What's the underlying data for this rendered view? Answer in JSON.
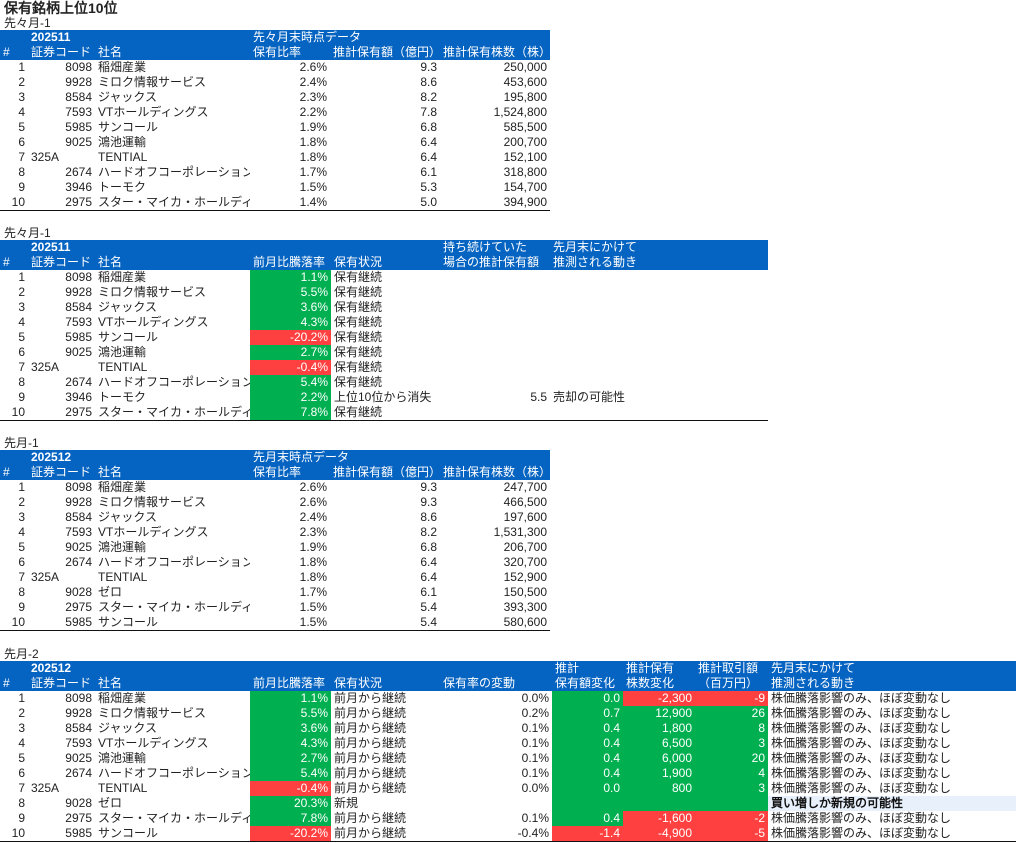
{
  "page_title": "保有銘柄上位10位",
  "colors": {
    "header": "#0563C1",
    "positive": "#00B050",
    "negative": "#FF4040",
    "highlight": "#E7F0FB"
  },
  "tables": [
    {
      "label": "先々月-1",
      "header_top": [
        "",
        "202511",
        "",
        "先々月末時点データ",
        "",
        ""
      ],
      "header_bottom": [
        "#",
        "証券コード",
        "社名",
        "保有比率",
        "推計保有額（億円）",
        "推計保有株数（株）"
      ],
      "rows": [
        {
          "cells": [
            "1",
            "8098",
            "稲畑産業",
            "2.6%",
            "9.3",
            "250,000"
          ]
        },
        {
          "cells": [
            "2",
            "9928",
            "ミロク情報サービス",
            "2.4%",
            "8.6",
            "453,600"
          ]
        },
        {
          "cells": [
            "3",
            "8584",
            "ジャックス",
            "2.3%",
            "8.2",
            "195,800"
          ]
        },
        {
          "cells": [
            "4",
            "7593",
            "VTホールディングス",
            "2.2%",
            "7.8",
            "1,524,800"
          ]
        },
        {
          "cells": [
            "5",
            "5985",
            "サンコール",
            "1.9%",
            "6.8",
            "585,500"
          ]
        },
        {
          "cells": [
            "6",
            "9025",
            "鴻池運輸",
            "1.8%",
            "6.4",
            "200,700"
          ]
        },
        {
          "cells": [
            "7",
            "325A",
            "TENTIAL",
            "1.8%",
            "6.4",
            "152,100"
          ]
        },
        {
          "cells": [
            "8",
            "2674",
            "ハードオフコーポレーション",
            "1.7%",
            "6.1",
            "318,800"
          ]
        },
        {
          "cells": [
            "9",
            "3946",
            "トーモク",
            "1.5%",
            "5.3",
            "154,700"
          ]
        },
        {
          "cells": [
            "10",
            "2975",
            "スター・マイカ・ホールディングス",
            "1.4%",
            "5.0",
            "394,900"
          ]
        }
      ]
    },
    {
      "label": "先々月-1",
      "header_top": [
        "",
        "202511",
        "",
        "",
        "",
        "持ち続けていた",
        "先月末にかけて"
      ],
      "header_bottom": [
        "#",
        "証券コード",
        "社名",
        "前月比騰落率",
        "保有状況",
        "場合の推計保有額",
        "推測される動き"
      ],
      "rows": [
        {
          "cells": [
            "1",
            "8098",
            "稲畑産業",
            "1.1%",
            "保有継続",
            "",
            ""
          ],
          "fills": [
            "",
            "",
            "",
            "g",
            "",
            "",
            ""
          ]
        },
        {
          "cells": [
            "2",
            "9928",
            "ミロク情報サービス",
            "5.5%",
            "保有継続",
            "",
            ""
          ],
          "fills": [
            "",
            "",
            "",
            "g",
            "",
            "",
            ""
          ]
        },
        {
          "cells": [
            "3",
            "8584",
            "ジャックス",
            "3.6%",
            "保有継続",
            "",
            ""
          ],
          "fills": [
            "",
            "",
            "",
            "g",
            "",
            "",
            ""
          ]
        },
        {
          "cells": [
            "4",
            "7593",
            "VTホールディングス",
            "4.3%",
            "保有継続",
            "",
            ""
          ],
          "fills": [
            "",
            "",
            "",
            "g",
            "",
            "",
            ""
          ]
        },
        {
          "cells": [
            "5",
            "5985",
            "サンコール",
            "-20.2%",
            "保有継続",
            "",
            ""
          ],
          "fills": [
            "",
            "",
            "",
            "r",
            "",
            "",
            ""
          ]
        },
        {
          "cells": [
            "6",
            "9025",
            "鴻池運輸",
            "2.7%",
            "保有継続",
            "",
            ""
          ],
          "fills": [
            "",
            "",
            "",
            "g",
            "",
            "",
            ""
          ]
        },
        {
          "cells": [
            "7",
            "325A",
            "TENTIAL",
            "-0.4%",
            "保有継続",
            "",
            ""
          ],
          "fills": [
            "",
            "",
            "",
            "r",
            "",
            "",
            ""
          ]
        },
        {
          "cells": [
            "8",
            "2674",
            "ハードオフコーポレーション",
            "5.4%",
            "保有継続",
            "",
            ""
          ],
          "fills": [
            "",
            "",
            "",
            "g",
            "",
            "",
            ""
          ]
        },
        {
          "cells": [
            "9",
            "3946",
            "トーモク",
            "2.2%",
            "上位10位から消失",
            "5.5",
            "売却の可能性"
          ],
          "fills": [
            "",
            "",
            "",
            "g",
            "",
            "",
            ""
          ]
        },
        {
          "cells": [
            "10",
            "2975",
            "スター・マイカ・ホールディングス",
            "7.8%",
            "保有継続",
            "",
            ""
          ],
          "fills": [
            "",
            "",
            "",
            "g",
            "",
            "",
            ""
          ]
        }
      ]
    },
    {
      "label": "先月-1",
      "header_top": [
        "",
        "202512",
        "",
        "先月末時点データ",
        "",
        ""
      ],
      "header_bottom": [
        "#",
        "証券コード",
        "社名",
        "保有比率",
        "推計保有額（億円）",
        "推計保有株数（株）"
      ],
      "rows": [
        {
          "cells": [
            "1",
            "8098",
            "稲畑産業",
            "2.6%",
            "9.3",
            "247,700"
          ]
        },
        {
          "cells": [
            "2",
            "9928",
            "ミロク情報サービス",
            "2.6%",
            "9.3",
            "466,500"
          ]
        },
        {
          "cells": [
            "3",
            "8584",
            "ジャックス",
            "2.4%",
            "8.6",
            "197,600"
          ]
        },
        {
          "cells": [
            "4",
            "7593",
            "VTホールディングス",
            "2.3%",
            "8.2",
            "1,531,300"
          ]
        },
        {
          "cells": [
            "5",
            "9025",
            "鴻池運輸",
            "1.9%",
            "6.8",
            "206,700"
          ]
        },
        {
          "cells": [
            "6",
            "2674",
            "ハードオフコーポレーション",
            "1.8%",
            "6.4",
            "320,700"
          ]
        },
        {
          "cells": [
            "7",
            "325A",
            "TENTIAL",
            "1.8%",
            "6.4",
            "152,900"
          ]
        },
        {
          "cells": [
            "8",
            "9028",
            "ゼロ",
            "1.7%",
            "6.1",
            "150,500"
          ]
        },
        {
          "cells": [
            "9",
            "2975",
            "スター・マイカ・ホールディングス",
            "1.5%",
            "5.4",
            "393,300"
          ]
        },
        {
          "cells": [
            "10",
            "5985",
            "サンコール",
            "1.5%",
            "5.4",
            "580,600"
          ]
        }
      ]
    },
    {
      "label": "先月-2",
      "header_top": [
        "",
        "202512",
        "",
        "",
        "",
        "",
        "推計",
        "推計保有",
        "推計取引額",
        "先月末にかけて"
      ],
      "header_bottom": [
        "#",
        "証券コード",
        "社名",
        "前月比騰落率",
        "保有状況",
        "保有率の変動",
        "保有額変化",
        "株数変化",
        "（百万円）",
        "推測される動き"
      ],
      "rows": [
        {
          "cells": [
            "1",
            "8098",
            "稲畑産業",
            "1.1%",
            "前月から継続",
            "0.0%",
            "0.0",
            "-2,300",
            "-9",
            "株価騰落影響のみ、ほぼ変動なし"
          ],
          "fills": [
            "",
            "",
            "",
            "g",
            "",
            "",
            "g",
            "r",
            "r",
            ""
          ]
        },
        {
          "cells": [
            "2",
            "9928",
            "ミロク情報サービス",
            "5.5%",
            "前月から継続",
            "0.2%",
            "0.7",
            "12,900",
            "26",
            "株価騰落影響のみ、ほぼ変動なし"
          ],
          "fills": [
            "",
            "",
            "",
            "g",
            "",
            "",
            "g",
            "g",
            "g",
            ""
          ]
        },
        {
          "cells": [
            "3",
            "8584",
            "ジャックス",
            "3.6%",
            "前月から継続",
            "0.1%",
            "0.4",
            "1,800",
            "8",
            "株価騰落影響のみ、ほぼ変動なし"
          ],
          "fills": [
            "",
            "",
            "",
            "g",
            "",
            "",
            "g",
            "g",
            "g",
            ""
          ]
        },
        {
          "cells": [
            "4",
            "7593",
            "VTホールディングス",
            "4.3%",
            "前月から継続",
            "0.1%",
            "0.4",
            "6,500",
            "3",
            "株価騰落影響のみ、ほぼ変動なし"
          ],
          "fills": [
            "",
            "",
            "",
            "g",
            "",
            "",
            "g",
            "g",
            "g",
            ""
          ]
        },
        {
          "cells": [
            "5",
            "9025",
            "鴻池運輸",
            "2.7%",
            "前月から継続",
            "0.1%",
            "0.4",
            "6,000",
            "20",
            "株価騰落影響のみ、ほぼ変動なし"
          ],
          "fills": [
            "",
            "",
            "",
            "g",
            "",
            "",
            "g",
            "g",
            "g",
            ""
          ]
        },
        {
          "cells": [
            "6",
            "2674",
            "ハードオフコーポレーション",
            "5.4%",
            "前月から継続",
            "0.1%",
            "0.4",
            "1,900",
            "4",
            "株価騰落影響のみ、ほぼ変動なし"
          ],
          "fills": [
            "",
            "",
            "",
            "g",
            "",
            "",
            "g",
            "g",
            "g",
            ""
          ]
        },
        {
          "cells": [
            "7",
            "325A",
            "TENTIAL",
            "-0.4%",
            "前月から継続",
            "0.0%",
            "0.0",
            "800",
            "3",
            "株価騰落影響のみ、ほぼ変動なし"
          ],
          "fills": [
            "",
            "",
            "",
            "r",
            "",
            "",
            "g",
            "g",
            "g",
            ""
          ]
        },
        {
          "cells": [
            "8",
            "9028",
            "ゼロ",
            "20.3%",
            "新規",
            "",
            "",
            "",
            "",
            "買い増しか新規の可能性"
          ],
          "fills": [
            "",
            "",
            "",
            "g",
            "",
            "",
            "g",
            "g",
            "g",
            "h"
          ]
        },
        {
          "cells": [
            "9",
            "2975",
            "スター・マイカ・ホールディングス",
            "7.8%",
            "前月から継続",
            "0.1%",
            "0.4",
            "-1,600",
            "-2",
            "株価騰落影響のみ、ほぼ変動なし"
          ],
          "fills": [
            "",
            "",
            "",
            "g",
            "",
            "",
            "g",
            "r",
            "r",
            ""
          ]
        },
        {
          "cells": [
            "10",
            "5985",
            "サンコール",
            "-20.2%",
            "前月から継続",
            "-0.4%",
            "-1.4",
            "-4,900",
            "-5",
            "株価騰落影響のみ、ほぼ変動なし"
          ],
          "fills": [
            "",
            "",
            "",
            "r",
            "",
            "",
            "r",
            "r",
            "r",
            ""
          ]
        }
      ]
    }
  ]
}
